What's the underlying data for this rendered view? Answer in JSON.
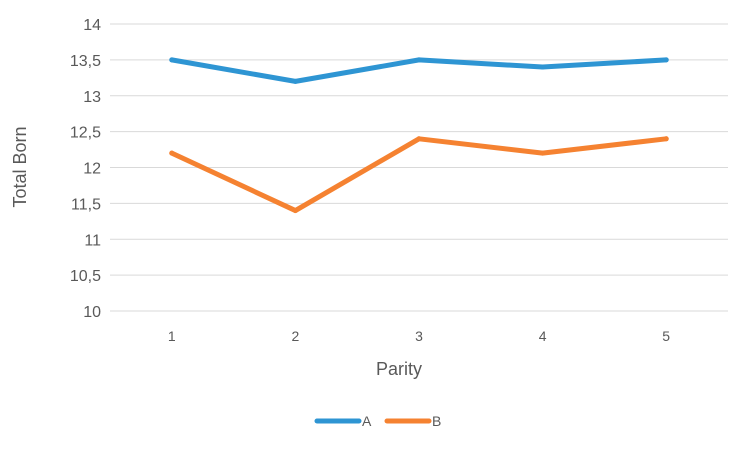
{
  "chart_data": {
    "type": "line",
    "title": "",
    "xlabel": "Parity",
    "ylabel": "Total Born",
    "categories": [
      "1",
      "2",
      "3",
      "4",
      "5"
    ],
    "y_ticks": [
      "10",
      "10,5",
      "11",
      "11,5",
      "12",
      "12,5",
      "13",
      "13,5",
      "14"
    ],
    "ylim": [
      10,
      14
    ],
    "grid": true,
    "legend_position": "bottom",
    "series": [
      {
        "name": "A",
        "color": "#2e95d3",
        "values": [
          13.5,
          13.2,
          13.5,
          13.4,
          13.5
        ]
      },
      {
        "name": "B",
        "color": "#f58231",
        "values": [
          12.2,
          11.4,
          12.4,
          12.2,
          12.4
        ]
      }
    ]
  }
}
